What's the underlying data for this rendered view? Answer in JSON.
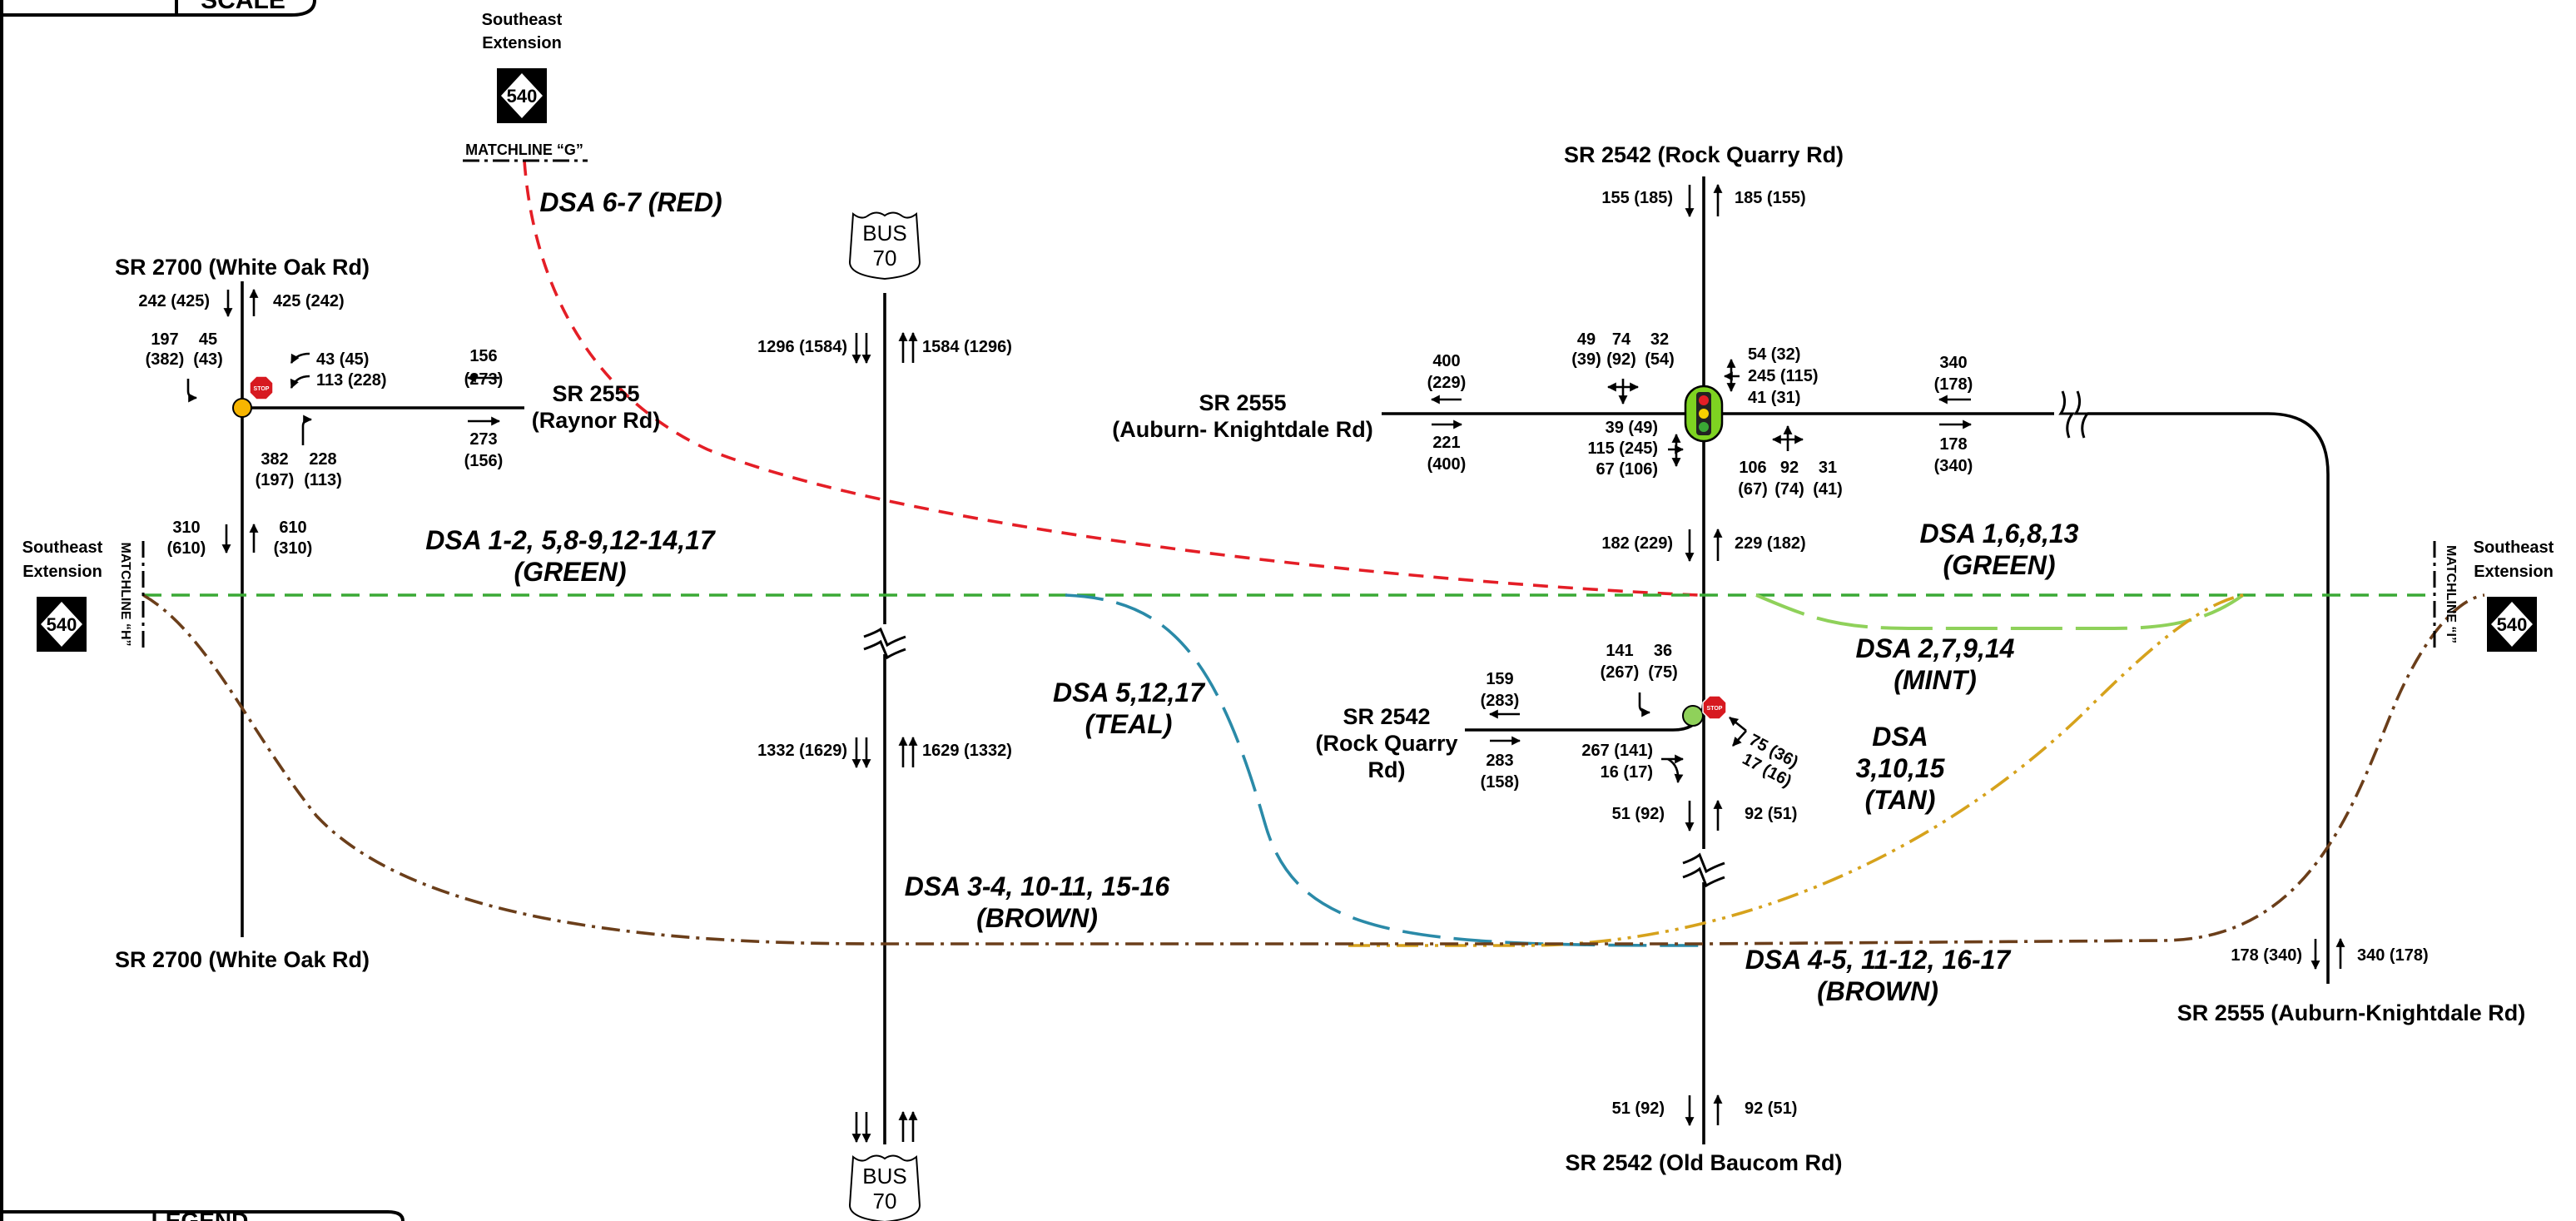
{
  "labels": {
    "scale": "SCALE",
    "legend": "LEGEND",
    "se_ext_top": [
      "Southeast",
      "Extension"
    ],
    "se_ext_left": [
      "Southeast",
      "Extension"
    ],
    "se_ext_right": [
      "Southeast",
      "Extension"
    ],
    "shield_540": "540",
    "bus_shield": [
      "BUS",
      "70"
    ],
    "matchline_g": "MATCHLINE “G”",
    "matchline_h": "MATCHLINE “H”",
    "matchline_i": "MATCHLINE “I”",
    "white_oak_top": "SR 2700 (White Oak Rd)",
    "white_oak_bottom": "SR 2700 (White Oak Rd)",
    "raynor": [
      "SR 2555",
      "(Raynor Rd)"
    ],
    "rock_quarry_top": "SR 2542 (Rock Quarry Rd)",
    "auburn_west": [
      "SR 2555",
      "(Auburn- Knightdale Rd)"
    ],
    "rock_quarry_west": [
      "SR 2542",
      "(Rock Quarry",
      "Rd)"
    ],
    "old_baucom": "SR 2542 (Old Baucom Rd)",
    "auburn_south": "SR 2555 (Auburn-Knightdale Rd)",
    "stop": "STOP"
  },
  "dsa": {
    "red": "DSA 6-7 (RED)",
    "green_left": [
      "DSA 1-2, 5,8-9,12-14,17",
      "(GREEN)"
    ],
    "green_right": [
      "DSA 1,6,8,13",
      "(GREEN)"
    ],
    "mint": [
      "DSA 2,7,9,14",
      "(MINT)"
    ],
    "teal": [
      "DSA 5,12,17",
      "(TEAL)"
    ],
    "tan": [
      "DSA",
      "3,10,15",
      "(TAN)"
    ],
    "brown_left": [
      "DSA 3-4, 10-11, 15-16",
      "(BROWN)"
    ],
    "brown_right": [
      "DSA 4-5, 11-12, 16-17",
      "(BROWN)"
    ]
  },
  "volumes": {
    "wo_n_sb": "242 (425)",
    "wo_n_nb": "425 (242)",
    "wo_sb_lr": [
      "197",
      "45",
      "(382)",
      "(43)"
    ],
    "wo_wb": [
      "43 (45)",
      "113 (228)"
    ],
    "wo_nb_lr": [
      "382",
      "228",
      "(197)",
      "(113)"
    ],
    "wo_raynor_wb": [
      "156",
      "(273)"
    ],
    "wo_raynor_eb": [
      "273",
      "(156)"
    ],
    "wo_s_sb": [
      "310",
      "(610)"
    ],
    "wo_s_nb": [
      "610",
      "(310)"
    ],
    "bus_n_sb": "1296 (1584)",
    "bus_n_nb": "1584 (1296)",
    "bus_s_sb": "1332 (1629)",
    "bus_s_nb": "1629 (1332)",
    "rq_n_sb": "155 (185)",
    "rq_n_nb": "185 (155)",
    "rq_sb_turns": [
      "49",
      "74",
      "32",
      "(39)",
      "(92)",
      "(54)"
    ],
    "rq_wb_turns": [
      "54 (32)",
      "245 (115)",
      "41 (31)"
    ],
    "rq_eb_turns": [
      "39 (49)",
      "115 (245)",
      "67 (106)"
    ],
    "rq_nb_turns": [
      "106",
      "92",
      "31",
      "(67)",
      "(74)",
      "(41)"
    ],
    "auw_wb": [
      "400",
      "(229)"
    ],
    "auw_eb": [
      "221",
      "(400)"
    ],
    "aue_wb": [
      "340",
      "(178)"
    ],
    "aue_eb": [
      "178",
      "(340)"
    ],
    "rq_mid_sb": "182 (229)",
    "rq_mid_nb": "229 (182)",
    "rq2_sb_turns": [
      "141",
      "36",
      "(267)",
      "(75)"
    ],
    "rq2_nb_turns": [
      "75 (36)",
      "17 (16)"
    ],
    "rq2_eb_turns": [
      "267 (141)",
      "16 (17)"
    ],
    "rq2_wb": [
      "159",
      "(283)"
    ],
    "rq2_eb": [
      "283",
      "(158)"
    ],
    "rq_s1_sb": "51 (92)",
    "rq_s1_nb": "92 (51)",
    "rq_s2_sb": "51 (92)",
    "rq_s2_nb": "92 (51)",
    "au_s_sb": "178 (340)",
    "au_s_nb": "340 (178)"
  },
  "colors": {
    "red": "#e41e26",
    "green": "#3aa935",
    "mint": "#8fd15a",
    "teal": "#2a8aa8",
    "tan": "#d6a21c",
    "brown": "#6b3e1a",
    "stop": "#d71920",
    "signal_body": "#7ed321",
    "unsignalized_dot": "#f7b500"
  }
}
